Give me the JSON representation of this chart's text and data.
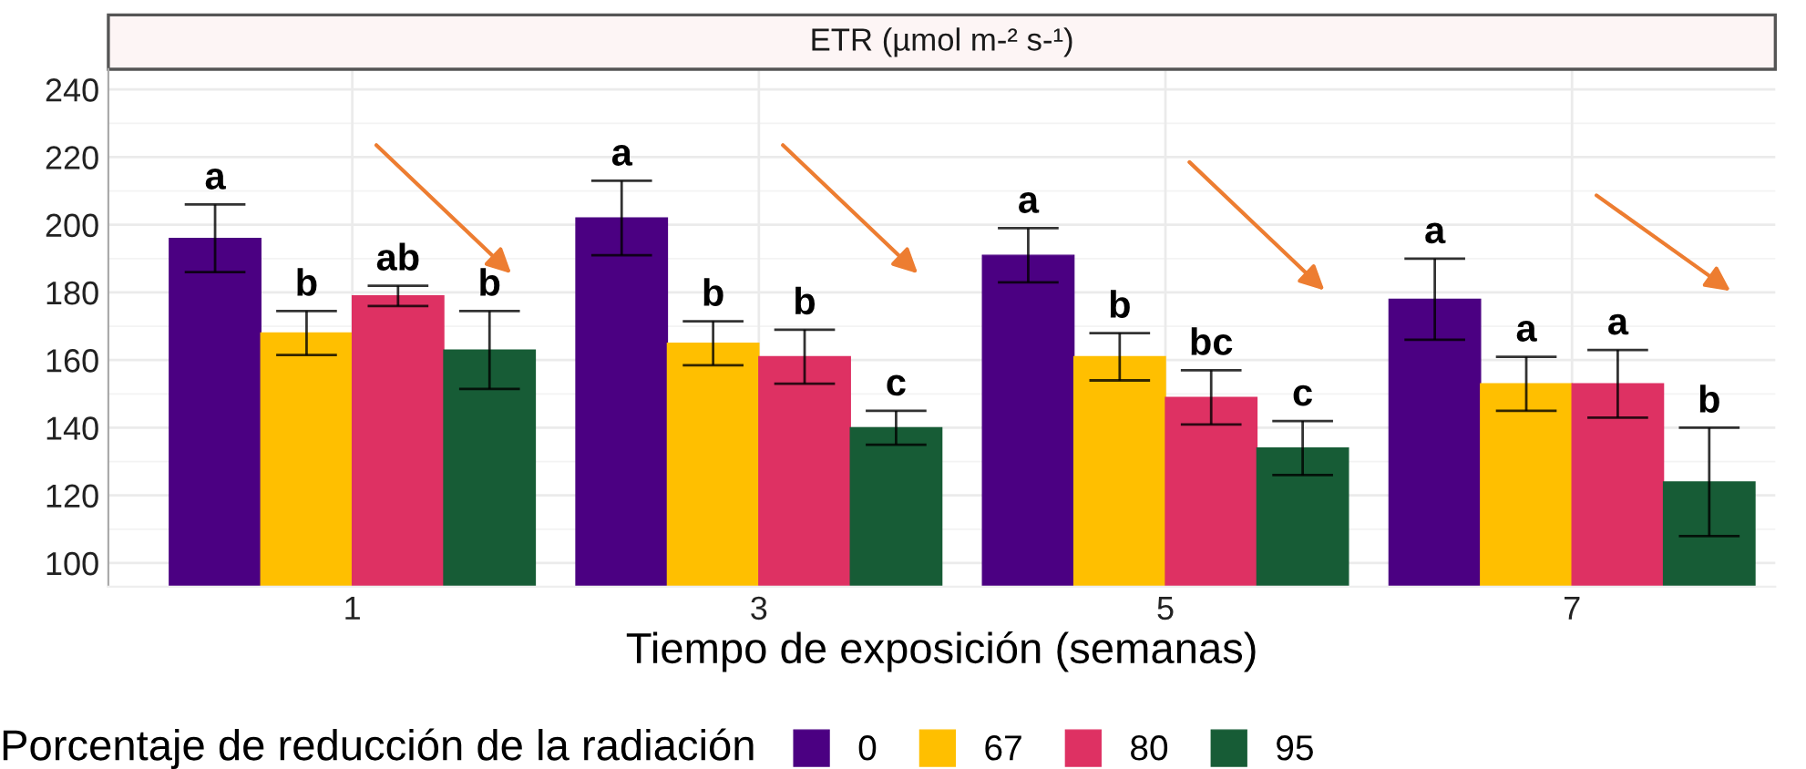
{
  "chart_data": {
    "type": "bar",
    "title": "ETR (µmol m-² s-¹)",
    "xlabel": "Tiempo de exposición (semanas)",
    "legend_title": "Porcentaje de reducción de la radiación",
    "categories": [
      "1",
      "3",
      "5",
      "7"
    ],
    "series": [
      {
        "name": "0",
        "color": "#4b0082",
        "values": [
          196,
          202,
          191,
          178
        ],
        "errors": [
          10,
          11,
          8,
          12
        ],
        "value_labels": [
          "a",
          "a",
          "a",
          "a"
        ]
      },
      {
        "name": "67",
        "color": "#ffbf00",
        "values": [
          168,
          165,
          161,
          153
        ],
        "errors": [
          6.5,
          6.5,
          7,
          8
        ],
        "value_labels": [
          "b",
          "b",
          "b",
          "a"
        ]
      },
      {
        "name": "80",
        "color": "#de3163",
        "values": [
          179,
          161,
          149,
          153
        ],
        "errors": [
          3,
          8,
          8,
          10
        ],
        "value_labels": [
          "ab",
          "b",
          "bc",
          "a"
        ]
      },
      {
        "name": "95",
        "color": "#175c36",
        "values": [
          163,
          140,
          134,
          124
        ],
        "errors": [
          11.5,
          5,
          8,
          16
        ],
        "value_labels": [
          "b",
          "c",
          "c",
          "b"
        ]
      }
    ],
    "ylim": [
      93,
      246
    ],
    "yticks": [
      100,
      120,
      140,
      160,
      180,
      200,
      220,
      240
    ],
    "grid": true,
    "legend": "bottom"
  }
}
